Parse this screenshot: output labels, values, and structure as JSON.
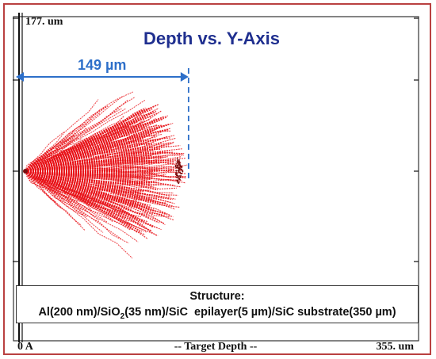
{
  "chart_data": {
    "type": "scatter",
    "title": "Depth vs. Y-Axis",
    "xlabel": "-- Target Depth --",
    "x_tick_labels": [
      "0 A",
      "355. um"
    ],
    "y_tick_label_top": "177. um",
    "xlim": [
      0,
      355
    ],
    "ylim": [
      -177,
      177
    ],
    "grid": false,
    "series_color": "#e8141a",
    "annotation": {
      "label": "149 µm",
      "value": 149
    },
    "structure": {
      "heading": "Structure:",
      "layers": [
        {
          "material": "Al",
          "thickness": "200 nm"
        },
        {
          "material": "SiO",
          "subscript": "2",
          "thickness": "35 nm"
        },
        {
          "material": "SiC  epilayer",
          "thickness": "5 µm"
        },
        {
          "material": "SiC substrate",
          "thickness": "350 µm"
        }
      ]
    },
    "points_summary": {
      "entry": [
        0,
        0
      ],
      "max_depth": 149,
      "lateral_spread": [
        -90,
        100
      ]
    }
  }
}
